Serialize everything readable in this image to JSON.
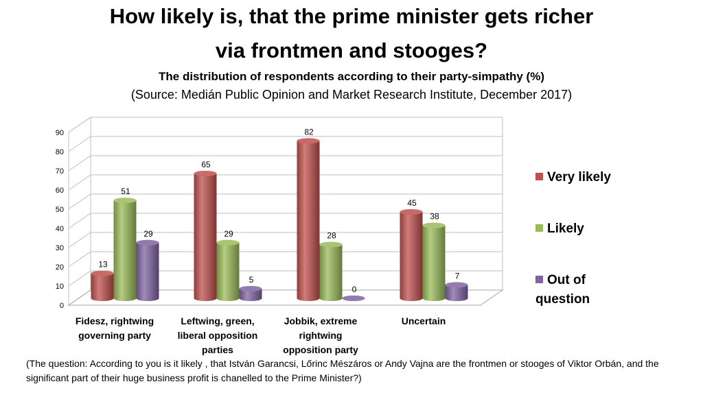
{
  "title_line1": "How likely is, that the prime minister gets richer",
  "title_line2": "via frontmen and stooges?",
  "subtitle": "The distribution of respondents according to their party-simpathy (%)",
  "source": "(Source: Medián Public Opinion and Market Research Institute, December 2017)",
  "footnote": "(The question: According to you is it likely , that István Garancsi, Lőrinc Mészáros or Andy Vajna are  the frontmen or stooges of Viktor Orbán, and the significant part of their huge business profit is chanelled to the Prime Minister?)",
  "chart_data": {
    "type": "bar",
    "style": "3d-cylinder",
    "categories": [
      "Fidesz, rightwing governing party",
      "Leftwing, green, liberal opposition parties",
      "Jobbik, extreme rightwing opposition party",
      "Uncertain"
    ],
    "series": [
      {
        "name": "Very likely",
        "color": "#c0504d",
        "values": [
          13,
          65,
          82,
          45
        ]
      },
      {
        "name": "Likely",
        "color": "#9bbb59",
        "values": [
          51,
          29,
          28,
          38
        ]
      },
      {
        "name": "Out of question",
        "color": "#8064a2",
        "values": [
          29,
          5,
          0,
          7
        ]
      }
    ],
    "ylim": [
      0,
      90
    ],
    "yticks": [
      0,
      10,
      20,
      30,
      40,
      50,
      60,
      70,
      80,
      90
    ],
    "grid": true,
    "legend": "right",
    "data_labels": true
  }
}
